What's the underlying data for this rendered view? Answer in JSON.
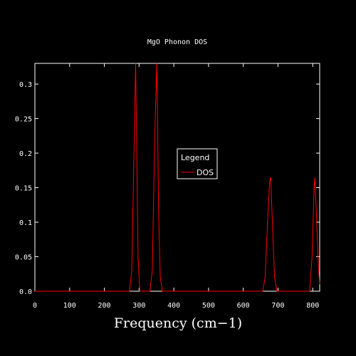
{
  "chart_data": {
    "type": "line",
    "title": "MgO Phonon DOS",
    "xlabel": "Frequency (cm−1)",
    "ylabel": "",
    "xlim": [
      0,
      820
    ],
    "ylim": [
      0,
      0.33
    ],
    "x_ticks": [
      "0",
      "100",
      "200",
      "300",
      "400",
      "500",
      "600",
      "700",
      "800"
    ],
    "y_ticks": [
      "0.0",
      "0.05",
      "0.1",
      "0.15",
      "0.2",
      "0.25",
      "0.3"
    ],
    "legend": {
      "title": "Legend",
      "placement": "center-right"
    },
    "grid": false,
    "series": [
      {
        "name": "DOS",
        "color": "#ff0000",
        "x": [
          0,
          272,
          279,
          286,
          290,
          293,
          297,
          302,
          331,
          338,
          345,
          351,
          353,
          356,
          361,
          367,
          656,
          663,
          670,
          676,
          679,
          683,
          690,
          697,
          791,
          798,
          804,
          806,
          810,
          816,
          820
        ],
        "y": [
          0.0,
          0.0,
          0.03,
          0.22,
          0.335,
          0.22,
          0.05,
          0.0,
          0.0,
          0.03,
          0.22,
          0.335,
          0.26,
          0.12,
          0.02,
          0.0,
          0.0,
          0.02,
          0.1,
          0.16,
          0.165,
          0.11,
          0.02,
          0.0,
          0.0,
          0.05,
          0.15,
          0.165,
          0.12,
          0.04,
          0.01
        ]
      }
    ]
  }
}
